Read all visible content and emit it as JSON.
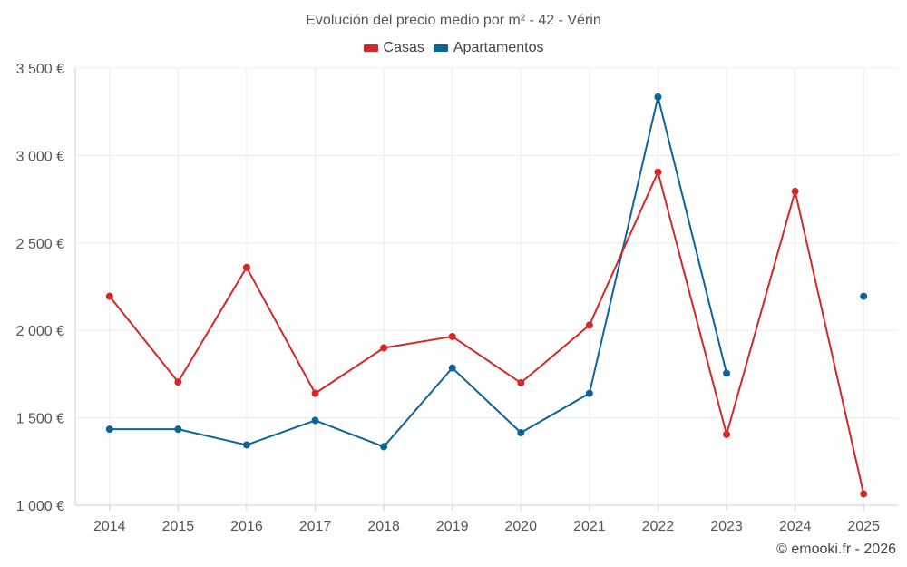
{
  "chart_data": {
    "type": "line",
    "title": "Evolución del precio medio por m² - 42 - Vérin",
    "xlabel": "",
    "ylabel": "",
    "categories": [
      "2014",
      "2015",
      "2016",
      "2017",
      "2018",
      "2019",
      "2020",
      "2021",
      "2022",
      "2023",
      "2024",
      "2025"
    ],
    "ylim": [
      1000,
      3500
    ],
    "yticks": [
      1000,
      1500,
      2000,
      2500,
      3000,
      3500
    ],
    "ytick_labels": [
      "1 000 €",
      "1 500 €",
      "2 000 €",
      "2 500 €",
      "3 000 €",
      "3 500 €"
    ],
    "grid": true,
    "legend_position": "top-center",
    "series": [
      {
        "name": "Casas",
        "color": "#d62728",
        "values": [
          2195,
          1705,
          2360,
          1640,
          1900,
          1965,
          1700,
          2030,
          2905,
          1405,
          2795,
          1065
        ]
      },
      {
        "name": "Apartamentos",
        "color": "#0b6596",
        "values": [
          1435,
          1435,
          1345,
          1485,
          1335,
          1785,
          1415,
          1640,
          3335,
          1755,
          null,
          2195
        ]
      }
    ]
  },
  "credit": "© emooki.fr - 2026"
}
